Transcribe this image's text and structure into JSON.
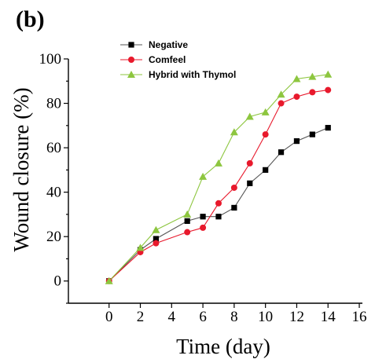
{
  "panel_label": "(b)",
  "chart_data": {
    "type": "line",
    "title": "",
    "xlabel": "Time (day)",
    "ylabel": "Wound closure (%)",
    "xlim": [
      -2.6,
      16.2
    ],
    "ylim": [
      -10,
      100
    ],
    "xticks": [
      0,
      2,
      4,
      6,
      8,
      10,
      12,
      14,
      16
    ],
    "yticks": [
      0,
      20,
      40,
      60,
      80,
      100
    ],
    "grid": false,
    "legend_position": "top-center",
    "series": [
      {
        "name": "Negative",
        "color": "#000000",
        "line_color": "#555555",
        "marker": "square",
        "x": [
          0,
          2,
          3,
          5,
          6,
          7,
          8,
          9,
          10,
          11,
          12,
          13,
          14
        ],
        "y": [
          0,
          14,
          19,
          27,
          29,
          29,
          33,
          44,
          50,
          58,
          63,
          66,
          69
        ]
      },
      {
        "name": "Comfeel",
        "color": "#e8192c",
        "line_color": "#e8192c",
        "marker": "circle",
        "x": [
          0,
          2,
          3,
          5,
          6,
          7,
          8,
          9,
          10,
          11,
          12,
          13,
          14
        ],
        "y": [
          0,
          13,
          17,
          22,
          24,
          35,
          42,
          53,
          66,
          80,
          83,
          85,
          86
        ]
      },
      {
        "name": "Hybrid with Thymol",
        "color": "#8dc63f",
        "line_color": "#8dc63f",
        "marker": "triangle",
        "x": [
          0,
          2,
          3,
          5,
          6,
          7,
          8,
          9,
          10,
          11,
          12,
          13,
          14
        ],
        "y": [
          0,
          15,
          23,
          30,
          47,
          53,
          67,
          74,
          76,
          84,
          91,
          92,
          93
        ]
      }
    ]
  }
}
